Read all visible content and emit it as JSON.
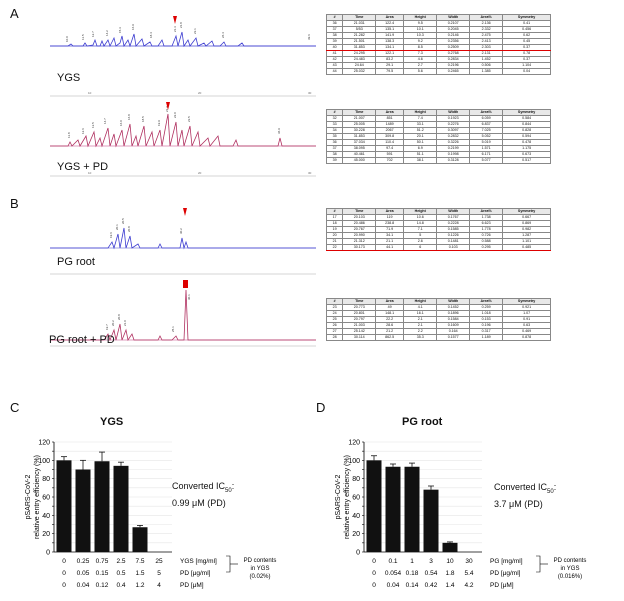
{
  "panels": {
    "A": {
      "letter": "A",
      "chrom1": {
        "label": "YGS"
      },
      "chrom2": {
        "label": "YGS + PD"
      },
      "table1": {
        "headers": [
          "#",
          "Time",
          "Area",
          "Height",
          "Width",
          "Area%",
          "Symmetry"
        ],
        "rows": [
          [
            "36",
            "21.031",
            "122.4",
            "9.5",
            "0.2107",
            "2.136",
            "0.41"
          ],
          [
            "37",
            "5/53",
            "135.1",
            "10.1",
            "0.2045",
            "2.332",
            "0.456"
          ],
          [
            "38",
            "21.282",
            "141.9",
            "10.3",
            "0.2146",
            "2.475",
            "0.62"
          ],
          [
            "39",
            "21.501",
            "138.3",
            "9.2",
            "0.2356",
            "2.413",
            "0.45"
          ],
          [
            "40",
            "31.853",
            "134.1",
            "8.5",
            "0.2509",
            "2.303",
            "0.37"
          ],
          [
            "41",
            "24.295",
            "122.1",
            "7.3",
            "0.2768",
            "2.131",
            "0.78"
          ],
          [
            "42",
            "24.483",
            "83.2",
            "4.6",
            "0.2834",
            "1.452",
            "0.37"
          ],
          [
            "43",
            "24.64",
            "29.1",
            "2.7",
            "0.2196",
            "0.506",
            "1.104"
          ],
          [
            "44",
            "25.032",
            "79.5",
            "5.6",
            "0.2465",
            "1.385",
            "0.04"
          ]
        ],
        "highlight_row": 4
      },
      "table2": {
        "headers": [
          "#",
          "Time",
          "Area",
          "Height",
          "Width",
          "Area%",
          "Symmetry"
        ],
        "rows": [
          [
            "32",
            "21.007",
            "851",
            "7.4",
            "0.1923",
            "6.059",
            "0.584"
          ],
          [
            "33",
            "25.005",
            "1489",
            "33.1",
            "0.2276",
            "6.837",
            "0.844"
          ],
          [
            "34",
            "30.228",
            "2067",
            "51.2",
            "0.3097",
            "7.025",
            "0.828"
          ],
          [
            "35",
            "31.853",
            "309.8",
            "20.1",
            "0.2832",
            "5.052",
            "0.594"
          ],
          [
            "36",
            "37.034",
            "110.4",
            "50.1",
            "0.3226",
            "5.019",
            "0.478"
          ],
          [
            "37",
            "38.095",
            "97.4",
            "6.9",
            "0.2199",
            "1.571",
            "1.175"
          ],
          [
            "38",
            "40.461",
            "591",
            "51.1",
            "0.1998",
            "6.171",
            "0.673"
          ],
          [
            "39",
            "45.000",
            "702",
            "38.1",
            "0.3128",
            "5.077",
            "0.517"
          ]
        ],
        "highlight_row": -1
      }
    },
    "B": {
      "letter": "B",
      "chrom1": {
        "label": "PG root"
      },
      "chrom2": {
        "label": "PG root + PD"
      },
      "table1": {
        "headers": [
          "#",
          "Time",
          "Area",
          "Height",
          "Width",
          "Area%",
          "Symmetry"
        ],
        "rows": [
          [
            "17",
            "20.103",
            "119",
            "10.6",
            "0.1767",
            "1.738",
            "0.667"
          ],
          [
            "18",
            "20.486",
            "238.8",
            "14.8",
            "0.2228",
            "6.623",
            "0.869"
          ],
          [
            "19",
            "20.767",
            "71.9",
            "7.1",
            "0.1585",
            "1.778",
            "0.982"
          ],
          [
            "20",
            "20.990",
            "34.1",
            "5",
            "0.1226",
            "0.726",
            "1.287"
          ],
          [
            "21",
            "21.312",
            "21.1",
            "2.6",
            "0.1481",
            "0.588",
            "1.101"
          ],
          [
            "22",
            "30.173",
            "44.1",
            "6",
            "0.103",
            "0.295",
            "0.485"
          ]
        ],
        "highlight_row": 5
      },
      "table2": {
        "headers": [
          "#",
          "Time",
          "Area",
          "Height",
          "Width",
          "Area%",
          "Symmetry"
        ],
        "rows": [
          [
            "23",
            "20.773",
            "49",
            "4.1",
            "0.1452",
            "0.259",
            "0.921"
          ],
          [
            "24",
            "20.801",
            "148.1",
            "16.1",
            "0.1896",
            "1.018",
            "1.07"
          ],
          [
            "25",
            "20.797",
            "22.2",
            "2.1",
            "0.1584",
            "0.153",
            "0.91"
          ],
          [
            "26",
            "21.003",
            "28.6",
            "2.1",
            "0.1609",
            "0.196",
            "0.63"
          ],
          [
            "27",
            "25.142",
            "21.2",
            "2.2",
            "0.164",
            "0.317",
            "0.469"
          ],
          [
            "28",
            "30.114",
            "862.5",
            "35.3",
            "0.1577",
            "1.189",
            "0.878"
          ]
        ],
        "highlight_row": -1
      }
    },
    "C": {
      "letter": "C",
      "title": "YGS",
      "ic50_line1": "Converted IC",
      "ic50_sub": "50",
      "ic50_colon": ":",
      "ic50_line2": "0.99 μM (PD)",
      "row_labels": [
        "YGS [mg/ml]",
        "PD [μg/ml]",
        "PD [μM]"
      ],
      "side_note": [
        "PD contents",
        "in YGS",
        "(0.02%)"
      ],
      "rows": [
        [
          "0",
          "0.25",
          "0.75",
          "2.5",
          "7.5",
          "25"
        ],
        [
          "0",
          "0.05",
          "0.15",
          "0.5",
          "1.5",
          "5"
        ],
        [
          "0",
          "0.04",
          "0.12",
          "0.4",
          "1.2",
          "4"
        ]
      ]
    },
    "D": {
      "letter": "D",
      "title": "PG root",
      "ic50_line1": "Converted IC",
      "ic50_sub": "50",
      "ic50_colon": ":",
      "ic50_line2": "3.7 μM (PD)",
      "row_labels": [
        "PG [mg/ml]",
        "PD [μg/ml]",
        "PD [μM]"
      ],
      "side_note": [
        "PD contents",
        "in YGS",
        "(0.016%)"
      ],
      "rows": [
        [
          "0",
          "0.1",
          "1",
          "3",
          "10",
          "30"
        ],
        [
          "0",
          "0.054",
          "0.18",
          "0.54",
          "1.8",
          "5.4"
        ],
        [
          "0",
          "0.04",
          "0.14",
          "0.42",
          "1.4",
          "4.2"
        ]
      ]
    }
  },
  "chart_data": [
    {
      "type": "bar",
      "title": "YGS",
      "ylabel": "pSARS-CoV-2 relative entry efficiency (%)",
      "categories": [
        "0",
        "0.25",
        "0.75",
        "2.5",
        "7.5",
        "25"
      ],
      "values": [
        100,
        90,
        99,
        94,
        27,
        0
      ],
      "errors": [
        4,
        10,
        10,
        4,
        2,
        0
      ],
      "ylim": [
        0,
        120
      ],
      "yticks": [
        0,
        10,
        20,
        30,
        40,
        50,
        60,
        70,
        80,
        90,
        100,
        110,
        120
      ],
      "grid": true
    },
    {
      "type": "bar",
      "title": "PG root",
      "ylabel": "pSARS-CoV-2 relative entry efficiency (%)",
      "categories": [
        "0",
        "0.1",
        "1",
        "3",
        "10",
        "30"
      ],
      "values": [
        100,
        93,
        93,
        68,
        10,
        0
      ],
      "errors": [
        5,
        3,
        4,
        4,
        1,
        0
      ],
      "ylim": [
        0,
        120
      ],
      "yticks": [
        0,
        10,
        20,
        30,
        40,
        50,
        60,
        70,
        80,
        90,
        100,
        110,
        120
      ],
      "grid": true
    }
  ]
}
